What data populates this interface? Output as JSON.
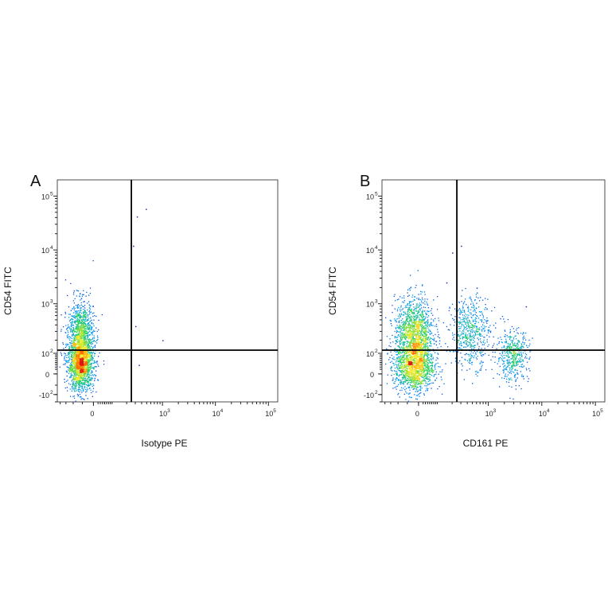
{
  "chart_data": [
    {
      "type": "scatter",
      "panel_label": "A",
      "xlabel": "Isotype PE",
      "ylabel": "CD54  FITC",
      "x_scale": "biexponential",
      "y_scale": "biexponential",
      "x_ticks": [
        {
          "value": 0,
          "base": "0",
          "exp": ""
        },
        {
          "value": 1000,
          "base": "10",
          "exp": "3"
        },
        {
          "value": 10000,
          "base": "10",
          "exp": "4"
        },
        {
          "value": 100000,
          "base": "10",
          "exp": "5"
        }
      ],
      "y_ticks": [
        {
          "value": -100,
          "base": "-10",
          "exp": "2"
        },
        {
          "value": 0,
          "base": "0",
          "exp": ""
        },
        {
          "value": 100,
          "base": "10",
          "exp": "2"
        },
        {
          "value": 1000,
          "base": "10",
          "exp": "3"
        },
        {
          "value": 10000,
          "base": "10",
          "exp": "4"
        },
        {
          "value": 100000,
          "base": "10",
          "exp": "5"
        }
      ],
      "gate": {
        "x": 250,
        "y": 120
      },
      "populations": [
        {
          "x": -60,
          "y": 40,
          "count": 1500,
          "density": "high"
        },
        {
          "x": -60,
          "y": 250,
          "count": 1100,
          "density": "medium"
        }
      ],
      "sparse_events": [
        {
          "x": 320,
          "y": 42000
        },
        {
          "x": 480,
          "y": 58000
        },
        {
          "x": 270,
          "y": 12000
        },
        {
          "x": 1000,
          "y": 200
        },
        {
          "x": 350,
          "y": 40
        },
        {
          "x": 300,
          "y": 380
        }
      ]
    },
    {
      "type": "scatter",
      "panel_label": "B",
      "xlabel": "CD161 PE",
      "ylabel": "CD54 FITC",
      "x_scale": "biexponential",
      "y_scale": "biexponential",
      "x_ticks": [
        {
          "value": 0,
          "base": "0",
          "exp": ""
        },
        {
          "value": 1000,
          "base": "10",
          "exp": "3"
        },
        {
          "value": 10000,
          "base": "10",
          "exp": "4"
        },
        {
          "value": 100000,
          "base": "10",
          "exp": "5"
        }
      ],
      "y_ticks": [
        {
          "value": -100,
          "base": "-10",
          "exp": "2"
        },
        {
          "value": 0,
          "base": "0",
          "exp": ""
        },
        {
          "value": 100,
          "base": "10",
          "exp": "2"
        },
        {
          "value": 1000,
          "base": "10",
          "exp": "3"
        },
        {
          "value": 10000,
          "base": "10",
          "exp": "4"
        },
        {
          "value": 100000,
          "base": "10",
          "exp": "5"
        }
      ],
      "gate": {
        "x": 250,
        "y": 120
      },
      "populations": [
        {
          "x": -20,
          "y": 35,
          "count": 1300,
          "density": "high"
        },
        {
          "x": -20,
          "y": 280,
          "count": 1300,
          "density": "high"
        },
        {
          "x": 450,
          "y": 300,
          "count": 550,
          "density": "low"
        },
        {
          "x": 2800,
          "y": 90,
          "count": 450,
          "density": "medium"
        }
      ],
      "sparse_events": [
        {
          "x": 200,
          "y": 9000
        },
        {
          "x": 300,
          "y": 12000
        },
        {
          "x": 150,
          "y": 2500
        },
        {
          "x": 600,
          "y": 2000
        },
        {
          "x": 5000,
          "y": 900
        }
      ]
    }
  ]
}
